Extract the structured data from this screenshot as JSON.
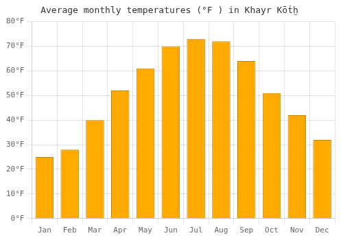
{
  "chart_data": {
    "type": "bar",
    "title": "Average monthly temperatures (°F ) in Khayr Kōṫḫ",
    "categories": [
      "Jan",
      "Feb",
      "Mar",
      "Apr",
      "May",
      "Jun",
      "Jul",
      "Aug",
      "Sep",
      "Oct",
      "Nov",
      "Dec"
    ],
    "values": [
      25,
      28,
      40,
      52,
      61,
      70,
      73,
      72,
      64,
      51,
      42,
      32
    ],
    "color": "#FFAA00",
    "ylim": [
      0,
      80
    ],
    "yticks": [
      {
        "value": 0,
        "label": "0°F"
      },
      {
        "value": 10,
        "label": "10°F"
      },
      {
        "value": 20,
        "label": "20°F"
      },
      {
        "value": 30,
        "label": "30°F"
      },
      {
        "value": 40,
        "label": "40°F"
      },
      {
        "value": 50,
        "label": "50°F"
      },
      {
        "value": 60,
        "label": "60°F"
      },
      {
        "value": 70,
        "label": "70°F"
      },
      {
        "value": 80,
        "label": "80°F"
      }
    ],
    "grid": true
  }
}
